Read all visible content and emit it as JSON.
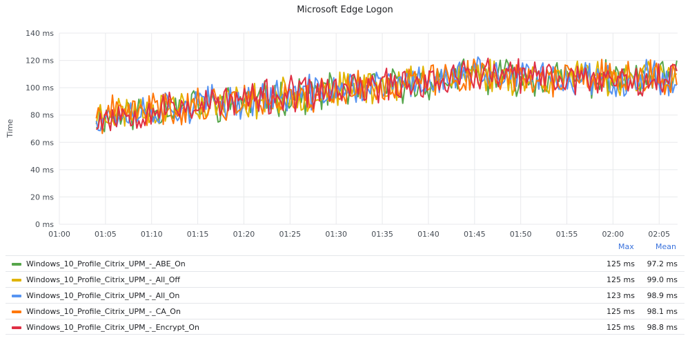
{
  "panel": {
    "title": "Microsoft Edge Logon"
  },
  "chart_data": {
    "type": "line",
    "title": "Microsoft Edge Logon",
    "ylabel": "Time",
    "xlabel": "",
    "ylim": [
      0,
      140
    ],
    "yticks": [
      "0 ms",
      "20 ms",
      "40 ms",
      "60 ms",
      "80 ms",
      "100 ms",
      "120 ms",
      "140 ms"
    ],
    "xlim_minutes": [
      0,
      67
    ],
    "xticks": [
      "01:00",
      "01:05",
      "01:10",
      "01:15",
      "01:20",
      "01:25",
      "01:30",
      "01:35",
      "01:40",
      "01:45",
      "01:50",
      "01:55",
      "02:00",
      "02:05"
    ],
    "grid": true,
    "legend_placement": "bottom",
    "series": [
      {
        "name": "Windows_10_Profile_Citrix_UPM_-_ABE_On",
        "color": "#56a64b",
        "max": "125 ms",
        "mean": "97.2 ms",
        "seed": 11,
        "trend": [
          [
            4,
            78
          ],
          [
            10,
            84
          ],
          [
            20,
            90
          ],
          [
            30,
            97
          ],
          [
            40,
            104
          ],
          [
            45,
            109
          ],
          [
            50,
            107
          ],
          [
            60,
            106
          ],
          [
            67,
            106
          ]
        ]
      },
      {
        "name": "Windows_10_Profile_Citrix_UPM_-_All_Off",
        "color": "#e0b400",
        "max": "125 ms",
        "mean": "99.0 ms",
        "seed": 23,
        "trend": [
          [
            4,
            80
          ],
          [
            10,
            85
          ],
          [
            20,
            90
          ],
          [
            30,
            98
          ],
          [
            40,
            106
          ],
          [
            45,
            111
          ],
          [
            50,
            108
          ],
          [
            60,
            107
          ],
          [
            67,
            108
          ]
        ]
      },
      {
        "name": "Windows_10_Profile_Citrix_UPM_-_All_On",
        "color": "#5794f2",
        "max": "123 ms",
        "mean": "98.9 ms",
        "seed": 37,
        "trend": [
          [
            4,
            80
          ],
          [
            10,
            84
          ],
          [
            20,
            91
          ],
          [
            30,
            98
          ],
          [
            40,
            105
          ],
          [
            45,
            110
          ],
          [
            50,
            108
          ],
          [
            60,
            107
          ],
          [
            67,
            108
          ]
        ]
      },
      {
        "name": "Windows_10_Profile_Citrix_UPM_-_CA_On",
        "color": "#ff780a",
        "max": "125 ms",
        "mean": "98.1 ms",
        "seed": 41,
        "trend": [
          [
            4,
            79
          ],
          [
            10,
            84
          ],
          [
            20,
            90
          ],
          [
            30,
            97
          ],
          [
            40,
            105
          ],
          [
            45,
            110
          ],
          [
            50,
            107
          ],
          [
            60,
            106
          ],
          [
            67,
            107
          ]
        ]
      },
      {
        "name": "Windows_10_Profile_Citrix_UPM_-_Encrypt_On",
        "color": "#e02f44",
        "max": "125 ms",
        "mean": "98.8 ms",
        "seed": 53,
        "trend": [
          [
            4,
            78
          ],
          [
            10,
            84
          ],
          [
            20,
            91
          ],
          [
            30,
            98
          ],
          [
            40,
            105
          ],
          [
            45,
            110
          ],
          [
            50,
            108
          ],
          [
            60,
            107
          ],
          [
            67,
            107
          ]
        ]
      }
    ]
  },
  "legend": {
    "max_header": "Max",
    "mean_header": "Mean"
  }
}
